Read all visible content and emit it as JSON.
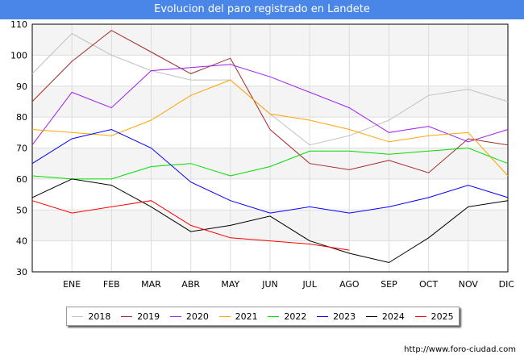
{
  "header": {
    "title": "Evolucion del paro registrado en Landete"
  },
  "footer": {
    "url": "http://www.foro-ciudad.com"
  },
  "chart_data": {
    "type": "line",
    "title": "Evolucion del paro registrado en Landete",
    "xlabel": "",
    "ylabel": "",
    "categories": [
      "",
      "ENE",
      "FEB",
      "MAR",
      "ABR",
      "MAY",
      "JUN",
      "JUL",
      "AGO",
      "SEP",
      "OCT",
      "NOV",
      "DIC"
    ],
    "ylim": [
      30,
      110
    ],
    "yticks": [
      30,
      40,
      50,
      60,
      70,
      80,
      90,
      100,
      110
    ],
    "legend_position": "bottom",
    "series": [
      {
        "name": "2018",
        "color": "#c0c0c0",
        "values": [
          94,
          107,
          100,
          95,
          92,
          92,
          81,
          71,
          74,
          79,
          87,
          89,
          85
        ]
      },
      {
        "name": "2019",
        "color": "#a52a2a",
        "values": [
          85,
          98,
          108,
          101,
          94,
          99,
          76,
          65,
          63,
          66,
          62,
          73,
          71
        ]
      },
      {
        "name": "2020",
        "color": "#a020f0",
        "values": [
          71,
          88,
          83,
          95,
          96,
          97,
          93,
          88,
          83,
          75,
          77,
          72,
          76
        ]
      },
      {
        "name": "2021",
        "color": "#ffa500",
        "values": [
          76,
          75,
          74,
          79,
          87,
          92,
          81,
          79,
          76,
          72,
          74,
          75,
          61
        ]
      },
      {
        "name": "2022",
        "color": "#00dd00",
        "values": [
          61,
          60,
          60,
          64,
          65,
          61,
          64,
          69,
          69,
          68,
          69,
          70,
          65
        ]
      },
      {
        "name": "2023",
        "color": "#0000ff",
        "values": [
          65,
          73,
          76,
          70,
          59,
          53,
          49,
          51,
          49,
          51,
          54,
          58,
          54
        ]
      },
      {
        "name": "2024",
        "color": "#000000",
        "values": [
          54,
          60,
          58,
          51,
          43,
          45,
          48,
          40,
          36,
          33,
          41,
          51,
          53
        ]
      },
      {
        "name": "2025",
        "color": "#ff0000",
        "values": [
          53,
          49,
          51,
          53,
          45,
          41,
          40,
          39,
          37,
          null,
          null,
          null,
          null
        ]
      }
    ]
  }
}
